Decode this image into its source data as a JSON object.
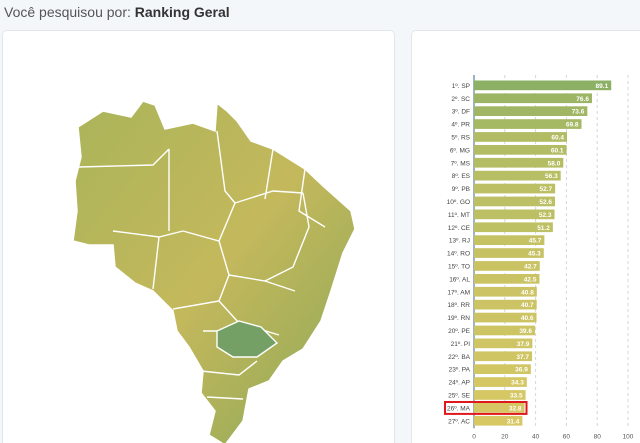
{
  "header": {
    "prefix": "Você pesquisou por:",
    "query": "Ranking Geral"
  },
  "colors": {
    "bar": "#8cb064",
    "bar_light": "#d8c864",
    "highlight": "#e0181c",
    "axis": "#7f9ab4"
  },
  "map": {
    "icon": "brazil-map-icon"
  },
  "chart_data": {
    "type": "bar",
    "orientation": "horizontal",
    "categories": [
      "1º. SP",
      "2º. SC",
      "3º. DF",
      "4º. PR",
      "5º. RS",
      "6º. MG",
      "7º. MS",
      "8º. ES",
      "9º. PB",
      "10º. GO",
      "11º. MT",
      "12º. CE",
      "13º. RJ",
      "14º. RO",
      "15º. TO",
      "16º. AL",
      "17º. AM",
      "18º. RR",
      "19º. RN",
      "20º. PE",
      "21º. PI",
      "22º. BA",
      "23º. PA",
      "24º. AP",
      "25º. SE",
      "26º. MA",
      "27º. AC"
    ],
    "values": [
      89.1,
      76.6,
      73.6,
      69.8,
      60.4,
      60.1,
      58.0,
      56.3,
      52.7,
      52.6,
      52.3,
      51.2,
      45.7,
      45.3,
      42.7,
      42.5,
      40.8,
      40.7,
      40.6,
      39.6,
      37.9,
      37.7,
      36.9,
      34.3,
      33.5,
      32.8,
      31.4
    ],
    "value_labels": [
      "89.1",
      "76.6",
      "73.6",
      "69.8",
      "60.4",
      "60.1",
      "58.0",
      "56.3",
      "52.7",
      "52.6",
      "52.3",
      "51.2",
      "45.7",
      "45.3",
      "42.7",
      "42.5",
      "40.8",
      "40.7",
      "40.6",
      "39.6",
      "37.9",
      "37.7",
      "36.9",
      "34.3",
      "33.5",
      "32.8",
      "31.4"
    ],
    "highlighted_category": "26º. MA",
    "xlim": [
      0,
      100
    ],
    "xticks": [
      0,
      20,
      40,
      60,
      80,
      100
    ],
    "grid": true
  }
}
